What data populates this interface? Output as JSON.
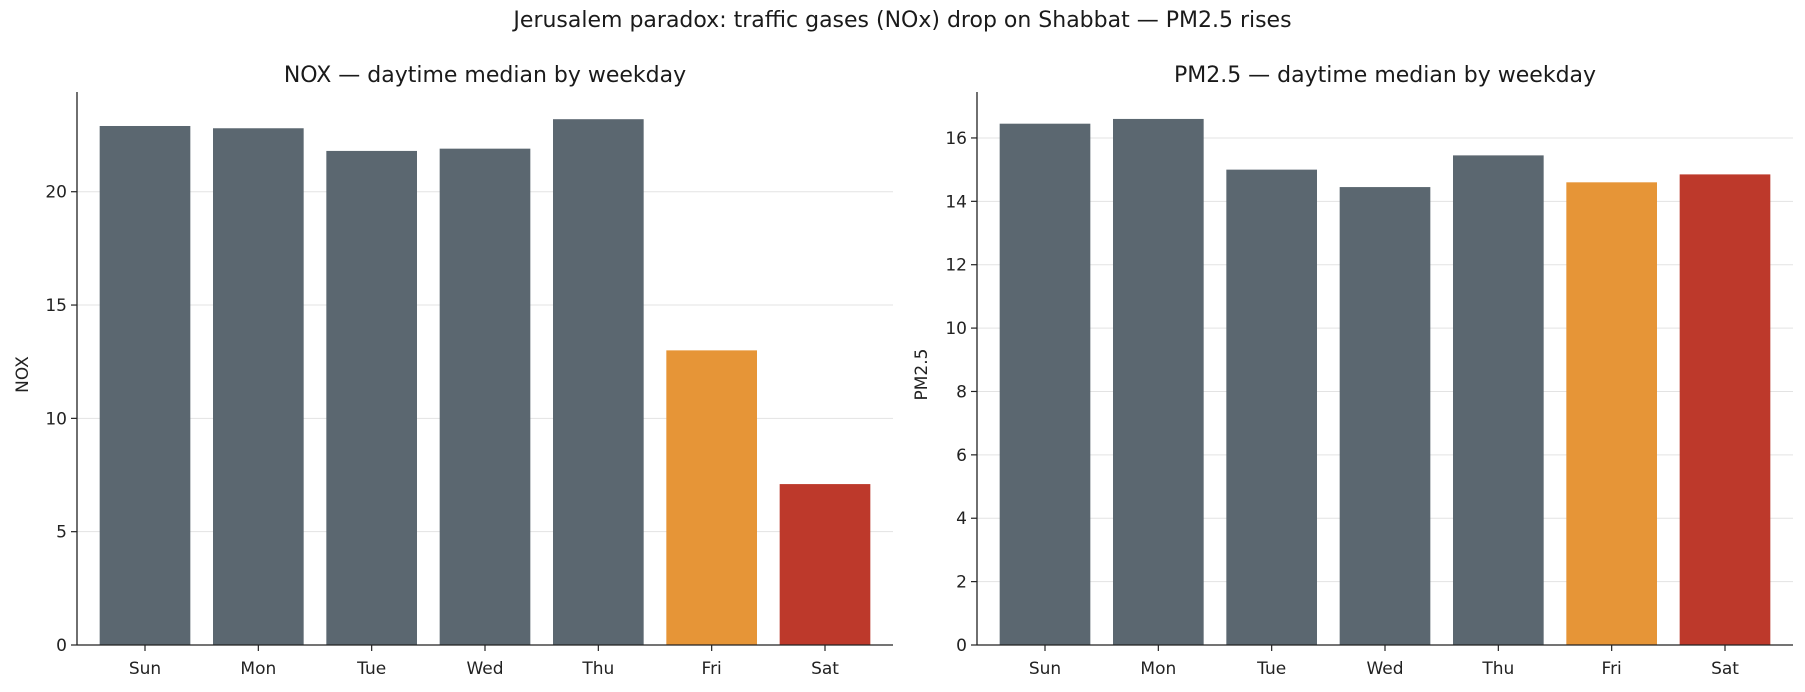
{
  "figure": {
    "title": "Jerusalem paradox: traffic gases (NOx) drop on Shabbat — PM2.5 rises"
  },
  "chart_data": [
    {
      "type": "bar",
      "title": "NOX — daytime median by weekday",
      "xlabel": "",
      "ylabel": "NOX",
      "categories": [
        "Sun",
        "Mon",
        "Tue",
        "Wed",
        "Thu",
        "Fri",
        "Sat"
      ],
      "values": [
        22.9,
        22.8,
        21.8,
        21.9,
        23.2,
        13.0,
        7.1
      ],
      "ylim": [
        0,
        24.4
      ],
      "yticks": [
        0,
        5,
        10,
        15,
        20
      ],
      "colors": [
        "#5b6770",
        "#5b6770",
        "#5b6770",
        "#5b6770",
        "#5b6770",
        "#e69537",
        "#bd392b"
      ],
      "grid": "y",
      "legend": "none"
    },
    {
      "type": "bar",
      "title": "PM2.5 — daytime median by weekday",
      "xlabel": "",
      "ylabel": "PM2.5",
      "categories": [
        "Sun",
        "Mon",
        "Tue",
        "Wed",
        "Thu",
        "Fri",
        "Sat"
      ],
      "values": [
        16.45,
        16.6,
        15.0,
        14.45,
        15.45,
        14.6,
        14.85
      ],
      "ylim": [
        0,
        17.45
      ],
      "yticks": [
        0,
        2,
        4,
        6,
        8,
        10,
        12,
        14,
        16
      ],
      "colors": [
        "#5b6770",
        "#5b6770",
        "#5b6770",
        "#5b6770",
        "#5b6770",
        "#e69537",
        "#bd392b"
      ],
      "grid": "y",
      "legend": "none"
    }
  ]
}
